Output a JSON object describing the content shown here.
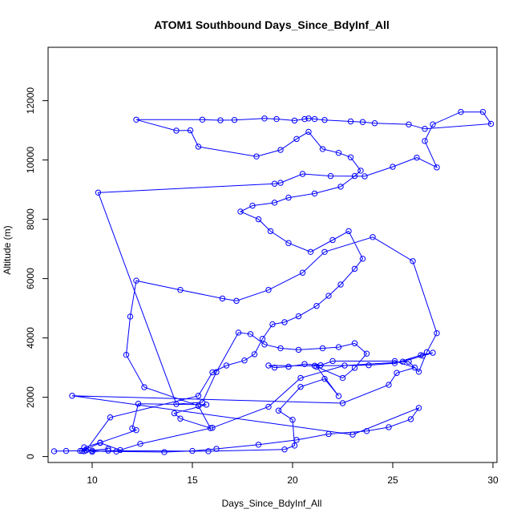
{
  "chart_data": {
    "type": "line",
    "title": "ATOM1 Southbound Days_Since_BdyInf_All",
    "xlabel": "Days_Since_BdyInf_All",
    "ylabel": "Altitude (m)",
    "xlim": [
      7.8,
      30.2
    ],
    "ylim": [
      -200,
      13800
    ],
    "xticks": [
      "10",
      "15",
      "20",
      "25",
      "30"
    ],
    "yticks": [
      "0",
      "2000",
      "4000",
      "6000",
      "8000",
      "10000",
      "12000"
    ],
    "grid": false,
    "series_color": "#0000ff",
    "series": [
      {
        "marker": "open-circle",
        "x": [
          8.1,
          8.7,
          10.0,
          10.8,
          9.6,
          9.5,
          10.4,
          11.4,
          12.4,
          16.0,
          18.8,
          20.4,
          22.6,
          25.8,
          26.3,
          26.7,
          27.2,
          26.0,
          24.0,
          21.6,
          20.5,
          18.8,
          17.2,
          16.5,
          14.4,
          12.2,
          11.9,
          11.7,
          12.6,
          15.3,
          15.9,
          14.4,
          14.1,
          15.7,
          12.3,
          12.0,
          12.2,
          10.4,
          9.6,
          10.0,
          10.8,
          15.8,
          19.6,
          20.1,
          20.0,
          19.3,
          20.4,
          21.6,
          22.3,
          21.2,
          22.5,
          23.1,
          23.7,
          23.1,
          22.3,
          21.5,
          20.3,
          19.4,
          18.6,
          17.9,
          17.3,
          16.2,
          15.5,
          14.2,
          10.3,
          19.1,
          19.4,
          20.5,
          21.9,
          23.6,
          25.0,
          26.2,
          27.2,
          26.6,
          27.0,
          28.4,
          29.5,
          29.9,
          26.6,
          25.8,
          24.1,
          23.5,
          22.9,
          21.6,
          21.1,
          20.8,
          20.6,
          20.1,
          19.2,
          18.6,
          17.1,
          16.4,
          15.5,
          12.2,
          14.2,
          14.9,
          15.3,
          18.2,
          19.4,
          20.2,
          20.8,
          21.5,
          22.3,
          22.9,
          23.4,
          23.1,
          22.4,
          21.1,
          19.8,
          19.1,
          18.0,
          17.4,
          18.3,
          18.9,
          19.8,
          20.9,
          22.0,
          22.8,
          23.5,
          23.1,
          22.4,
          21.8,
          21.2,
          20.3,
          19.6,
          19.0,
          18.5,
          18.1,
          17.6,
          16.7,
          16.0,
          15.3,
          10.9,
          9.7,
          9.4,
          11.2,
          13.6,
          15.0,
          16.2,
          18.3,
          20.2,
          21.8,
          23.7,
          24.8,
          25.9,
          26.3,
          23.0,
          9.0,
          22.5,
          24.8,
          25.2,
          26.1,
          25.1,
          22.0,
          21.4,
          20.6,
          19.8,
          19.1,
          18.8,
          21.1,
          23.8,
          25.1,
          26.4,
          27.0,
          26.5,
          25.5
        ],
        "y": [
          180,
          190,
          200,
          260,
          180,
          190,
          460,
          220,
          430,
          970,
          1680,
          2650,
          3070,
          3200,
          2860,
          3520,
          4160,
          6590,
          7400,
          6900,
          6200,
          5620,
          5250,
          5330,
          5620,
          5930,
          4720,
          3430,
          2340,
          1710,
          960,
          1280,
          1460,
          1750,
          1780,
          950,
          890,
          470,
          310,
          160,
          200,
          180,
          240,
          370,
          1240,
          1550,
          2350,
          2620,
          2040,
          3030,
          2650,
          2990,
          3470,
          3820,
          3690,
          3650,
          3600,
          3650,
          3780,
          4130,
          4180,
          2850,
          1830,
          1770,
          8900,
          9200,
          9230,
          9530,
          9460,
          9450,
          9770,
          10080,
          9750,
          10640,
          11200,
          11620,
          11620,
          11220,
          11050,
          11200,
          11240,
          11280,
          11300,
          11350,
          11380,
          11400,
          11380,
          11330,
          11380,
          11400,
          11350,
          11340,
          11360,
          11360,
          10990,
          11000,
          10450,
          10120,
          10340,
          10710,
          10950,
          10370,
          10240,
          10090,
          9640,
          9460,
          9100,
          8870,
          8730,
          8560,
          8460,
          8260,
          8000,
          7600,
          7200,
          6900,
          7300,
          7600,
          6670,
          6330,
          5800,
          5420,
          5080,
          4730,
          4530,
          4460,
          3970,
          3450,
          3240,
          3070,
          2840,
          2050,
          1320,
          210,
          190,
          170,
          150,
          190,
          260,
          400,
          560,
          760,
          860,
          990,
          1260,
          1640,
          740,
          2050,
          1800,
          2420,
          2820,
          3000,
          3220,
          3220,
          3080,
          3120,
          3030,
          3000,
          3070,
          3060,
          3080,
          3150,
          3420,
          3500,
          3400,
          3200
        ]
      }
    ]
  }
}
